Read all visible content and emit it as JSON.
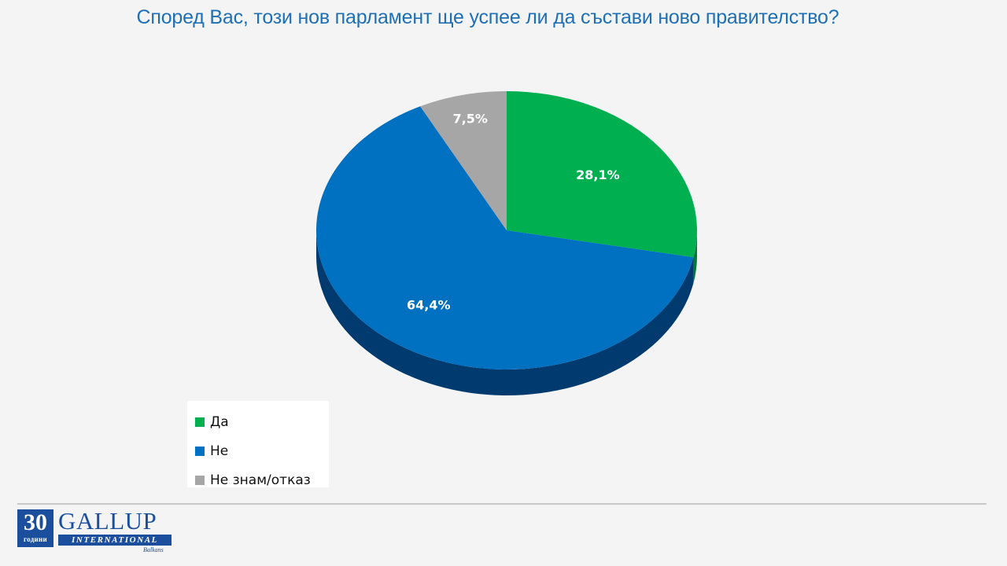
{
  "title": "Според Вас, този нов парламент ще успее ли да състави ново правителство?",
  "chart_data": {
    "type": "pie",
    "title": "Според Вас, този нов парламент ще успее ли да състави ново правителство?",
    "categories": [
      "Да",
      "Не",
      "Не знам/отказ"
    ],
    "values": [
      28.1,
      64.4,
      7.5
    ],
    "labels": [
      "28,1%",
      "64,4%",
      "7,5%"
    ],
    "colors": [
      "#00b050",
      "#0070c0",
      "#a6a6a6"
    ],
    "side_colors": [
      "#007a38",
      "#003a6e",
      "#6e6e6e"
    ],
    "style": "3d",
    "legend_position": "bottom-left"
  },
  "legend": {
    "items": [
      {
        "label": "Да",
        "color": "#00b050"
      },
      {
        "label": "Не",
        "color": "#0070c0"
      },
      {
        "label": "Не знам/отказ",
        "color": "#a6a6a6"
      }
    ]
  },
  "logo": {
    "number": "30",
    "subtitle": "години",
    "brand": "GALLUP",
    "band": "INTERNATIONAL",
    "region": "Balkans"
  }
}
